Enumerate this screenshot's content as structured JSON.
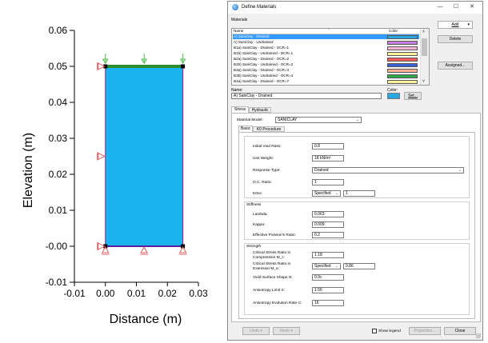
{
  "plot": {
    "xlabel": "Distance (m)",
    "ylabel": "Elevation (m)",
    "xticks": [
      "-0.01",
      "0.00",
      "0.01",
      "0.02",
      "0.03"
    ],
    "yticks": [
      "0.06",
      "0.05",
      "0.04",
      "0.03",
      "0.02",
      "0.01",
      "-0.00",
      "-0.01"
    ],
    "xlim": [
      -0.01,
      0.03
    ],
    "ylim": [
      -0.01,
      0.06
    ],
    "model_region": {
      "x": [
        0.0,
        0.025
      ],
      "y": [
        0.0,
        0.05
      ]
    },
    "colors": {
      "fill": "#1cb4ee",
      "top_band": "#2a8f2a",
      "support": "#e06060",
      "load": "#4cc04c"
    }
  },
  "dialog": {
    "title": "Define Materials",
    "window_buttons": {
      "minimize": "—",
      "maximize": "☐",
      "close": "✕"
    },
    "materials_label": "Materials",
    "list_header": {
      "name": "Name",
      "color": "Color"
    },
    "materials": [
      {
        "name": "A) SaniClay - Drained",
        "color": "#29a8e0",
        "selected": true
      },
      {
        "name": "A) SaniClay - Undrained",
        "color": "#c77ee0"
      },
      {
        "name": "B1a) SaniClay - Drained - OCR=1",
        "color": "#ffb6d4"
      },
      {
        "name": "B1b) SaniClay - Undrained - OCR=1",
        "color": "#fff29a"
      },
      {
        "name": "B2a) SaniClay - Drained - OCR=2",
        "color": "#ff5a5a"
      },
      {
        "name": "B2b) SaniClay - Undrained - OCR=2",
        "color": "#3a5fd8"
      },
      {
        "name": "B3a) SaniClay - Drained - OCR=4",
        "color": "#ffb090"
      },
      {
        "name": "B3b) SaniClay - Undrained - OCR=4",
        "color": "#2fa84a"
      },
      {
        "name": "B4a) SaniClay - Drained - OCR=7",
        "color": "#fff29a"
      }
    ],
    "add_label": "Add",
    "delete_label": "Delete",
    "assigned_label": "Assigned...",
    "name_label": "Name:",
    "name_value": "A) SaniClay - Drained",
    "color_label": "Color:",
    "color_value": "#29a8e0",
    "set_label": "Set...",
    "tabs": [
      "Stress",
      "Hydraulic"
    ],
    "material_model_label": "Material Model:",
    "material_model_value": "SANICLAY",
    "subtabs": [
      "Basic",
      "K0 Procedure"
    ],
    "basic": {
      "initial_void_ratio": {
        "label": "Initial Void Ratio:",
        "value": "0.8"
      },
      "unit_weight": {
        "label": "Unit Weight:",
        "value": "18 kN/m³"
      },
      "response_type": {
        "label": "Response Type:",
        "value": "Drained"
      },
      "oc_ratio": {
        "label": "O.C. Ratio:",
        "value": "1"
      },
      "k0nc": {
        "label": "K0nc:",
        "mode": "Specified",
        "value": "1"
      }
    },
    "stiffness": {
      "title": "Stiffness",
      "lambda": {
        "label": "Lambda:",
        "value": "0.063"
      },
      "kappa": {
        "label": "Kappa:",
        "value": "0.009"
      },
      "poisson": {
        "label": "Effective Poisson's Ratio:",
        "value": "0.2"
      }
    },
    "strength": {
      "title": "Strength",
      "csr_compression": {
        "label_1": "Critical Stress Ratio in",
        "label_2": "Compression M_c:",
        "value": "1.18"
      },
      "csr_extension": {
        "label_1": "Critical Stress Ratio in",
        "label_2": "Extension M_e:",
        "mode": "Specified",
        "value": "0.86"
      },
      "yield_shape": {
        "label": "Yield Surface Shape N:",
        "value": "0.9c"
      },
      "anisotropy_limit": {
        "label": "Anisotropy Limit X:",
        "value": "1.56"
      },
      "anisotropy_rate": {
        "label": "Anisotropy Evolution Rate C:",
        "value": "16"
      }
    },
    "bottom": {
      "undo": "Undo",
      "redo": "Redo",
      "show_legend": "Show legend",
      "properties": "Properties...",
      "close": "Close"
    }
  }
}
